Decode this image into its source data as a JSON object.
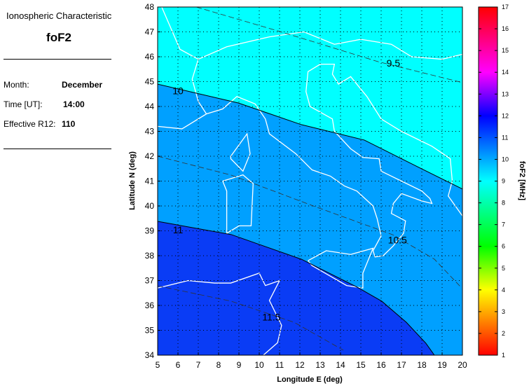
{
  "info": {
    "heading": "Ionospheric Characteristic",
    "characteristic": "foF2",
    "month_label": "Month:",
    "month": "December",
    "time_label": "Time [UT]:",
    "time": "14:00",
    "r12_label": "Effective R12:",
    "r12": "110"
  },
  "chart_data": {
    "type": "contour-map",
    "xlabel": "Longitude E (deg)",
    "ylabel": "Latitude N (deg)",
    "xlim": [
      5,
      20
    ],
    "ylim": [
      34,
      48
    ],
    "xticks": [
      5,
      6,
      7,
      8,
      9,
      10,
      11,
      12,
      13,
      14,
      15,
      16,
      17,
      18,
      19,
      20
    ],
    "yticks": [
      34,
      35,
      36,
      37,
      38,
      39,
      40,
      41,
      42,
      43,
      44,
      45,
      46,
      47,
      48
    ],
    "grid": true,
    "colorbar": {
      "label": "foF2 [MHz]",
      "range": [
        1,
        17
      ],
      "ticks": [
        1,
        2,
        3,
        4,
        5,
        6,
        7,
        8,
        9,
        10,
        11,
        12,
        13,
        14,
        15,
        16,
        17
      ],
      "position": "right"
    },
    "filled_bands": [
      {
        "range": "above 10",
        "color": "#00ffff"
      },
      {
        "range": "10-11",
        "color": "#00a0ff"
      },
      {
        "range": "above 11",
        "color": "#0a3cf5"
      }
    ],
    "contours": [
      {
        "level": "10",
        "style": "solid",
        "points": [
          [
            5,
            44.9
          ],
          [
            8.97,
            44.14
          ],
          [
            12.07,
            43.27
          ],
          [
            15.17,
            42.65
          ],
          [
            17.93,
            41.52
          ],
          [
            20,
            40.68
          ]
        ]
      },
      {
        "level": "11",
        "style": "solid",
        "points": [
          [
            5,
            39.38
          ],
          [
            8.62,
            38.85
          ],
          [
            12.07,
            37.86
          ],
          [
            14.83,
            36.73
          ],
          [
            16.03,
            36.17
          ],
          [
            17.24,
            35.32
          ],
          [
            18.2,
            34.48
          ],
          [
            18.62,
            34
          ]
        ]
      },
      {
        "level": "9.5",
        "style": "dashed",
        "points": [
          [
            6.9,
            48
          ],
          [
            11.03,
            47.01
          ],
          [
            15.86,
            45.8
          ],
          [
            20,
            44.96
          ]
        ]
      },
      {
        "level": "10.5",
        "style": "dashed",
        "points": [
          [
            5,
            42
          ],
          [
            8.62,
            41.24
          ],
          [
            12.76,
            39.97
          ],
          [
            16.55,
            38.85
          ],
          [
            18.62,
            37.86
          ],
          [
            19.93,
            36.73
          ]
        ]
      },
      {
        "level": "11.5",
        "style": "dashed",
        "points": [
          [
            5,
            36.79
          ],
          [
            8.62,
            36.17
          ],
          [
            11.72,
            35.32
          ],
          [
            14.14,
            34.2
          ]
        ]
      }
    ],
    "contour_labels": [
      {
        "text": "10",
        "lon": 6.0,
        "lat": 44.5
      },
      {
        "text": "11",
        "lon": 6.0,
        "lat": 38.9
      },
      {
        "text": "9.5",
        "lon": 16.6,
        "lat": 45.6
      },
      {
        "text": "10.5",
        "lon": 16.8,
        "lat": 38.5
      },
      {
        "text": "11.5",
        "lon": 10.6,
        "lat": 35.4
      }
    ]
  }
}
